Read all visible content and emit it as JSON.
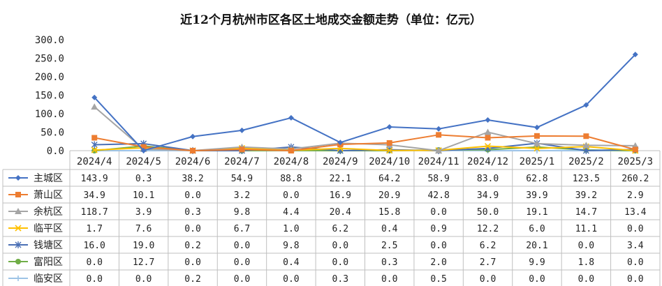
{
  "chart_data": {
    "type": "line",
    "title": "近12个月杭州市区各区土地成交金额走势（单位：亿元）",
    "categories": [
      "2024/4",
      "2024/5",
      "2024/6",
      "2024/7",
      "2024/8",
      "2024/9",
      "2024/10",
      "2024/11",
      "2024/12",
      "2025/1",
      "2025/2",
      "2025/3"
    ],
    "ylim": [
      0,
      300
    ],
    "yticks": [
      "0.0",
      "50.0",
      "100.0",
      "150.0",
      "200.0",
      "250.0",
      "300.0"
    ],
    "yticks_values": [
      0,
      50,
      100,
      150,
      200,
      250,
      300
    ],
    "legend_placement": "data-table-rows",
    "series": [
      {
        "name": "主城区",
        "color": "#4472c4",
        "marker": "diamond",
        "values": [
          143.9,
          0.3,
          38.2,
          54.9,
          88.8,
          22.1,
          64.2,
          58.9,
          83.0,
          62.8,
          123.5,
          260.2
        ],
        "labels": [
          "143.9",
          "0.3",
          "38.2",
          "54.9",
          "88.8",
          "22.1",
          "64.2",
          "58.9",
          "83.0",
          "62.8",
          "123.5",
          "260.2"
        ]
      },
      {
        "name": "萧山区",
        "color": "#ed7d31",
        "marker": "square",
        "values": [
          34.9,
          10.1,
          0.0,
          3.2,
          0.0,
          16.9,
          20.9,
          42.8,
          34.9,
          39.9,
          39.2,
          2.9
        ],
        "labels": [
          "34.9",
          "10.1",
          "0.0",
          "3.2",
          "0.0",
          "16.9",
          "20.9",
          "42.8",
          "34.9",
          "39.9",
          "39.2",
          "2.9"
        ]
      },
      {
        "name": "余杭区",
        "color": "#a5a5a5",
        "marker": "triangle",
        "values": [
          118.7,
          3.9,
          0.3,
          9.8,
          4.4,
          20.4,
          15.8,
          0.0,
          50.0,
          19.1,
          14.7,
          13.4
        ],
        "labels": [
          "118.7",
          "3.9",
          "0.3",
          "9.8",
          "4.4",
          "20.4",
          "15.8",
          "0.0",
          "50.0",
          "19.1",
          "14.7",
          "13.4"
        ]
      },
      {
        "name": "临平区",
        "color": "#ffc000",
        "marker": "x",
        "values": [
          1.7,
          7.6,
          0.0,
          6.7,
          1.0,
          6.2,
          0.4,
          0.9,
          12.2,
          6.0,
          11.1,
          0.0
        ],
        "labels": [
          "1.7",
          "7.6",
          "0.0",
          "6.7",
          "1.0",
          "6.2",
          "0.4",
          "0.9",
          "12.2",
          "6.0",
          "11.1",
          "0.0"
        ]
      },
      {
        "name": "钱塘区",
        "color": "#4a6fb5",
        "marker": "star",
        "values": [
          16.0,
          19.0,
          0.2,
          0.0,
          9.8,
          0.0,
          2.5,
          0.0,
          6.2,
          20.1,
          0.0,
          3.4
        ],
        "labels": [
          "16.0",
          "19.0",
          "0.2",
          "0.0",
          "9.8",
          "0.0",
          "2.5",
          "0.0",
          "6.2",
          "20.1",
          "0.0",
          "3.4"
        ]
      },
      {
        "name": "富阳区",
        "color": "#70ad47",
        "marker": "circle",
        "values": [
          0.0,
          12.7,
          0.0,
          0.0,
          0.4,
          0.0,
          0.3,
          2.0,
          2.7,
          9.9,
          1.8,
          0.0
        ],
        "labels": [
          "0.0",
          "12.7",
          "0.0",
          "0.0",
          "0.4",
          "0.0",
          "0.3",
          "2.0",
          "2.7",
          "9.9",
          "1.8",
          "0.0"
        ]
      },
      {
        "name": "临安区",
        "color": "#9dc3e6",
        "marker": "plus",
        "values": [
          0.0,
          0.0,
          0.2,
          0.0,
          0.0,
          0.3,
          0.0,
          0.5,
          0.0,
          0.0,
          0.0,
          0.0
        ],
        "labels": [
          "0.0",
          "0.0",
          "0.2",
          "0.0",
          "0.0",
          "0.3",
          "0.0",
          "0.5",
          "0.0",
          "0.0",
          "0.0",
          "0.0"
        ]
      }
    ]
  }
}
